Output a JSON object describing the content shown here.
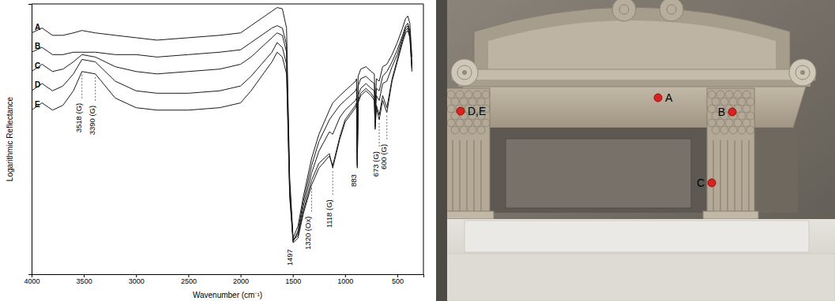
{
  "chart_data": {
    "type": "line",
    "x_label": "Wavenumber (cm⁻¹)",
    "y_label": "Logarithmic Reflectance",
    "xlim": [
      4000,
      250
    ],
    "xticks": [
      4000,
      3500,
      3000,
      2500,
      2000,
      1500,
      1000,
      500
    ],
    "ylim": [
      -12,
      100
    ],
    "yticks": [],
    "tick_labels": "x",
    "grid": false,
    "x": [
      4000,
      3900,
      3800,
      3700,
      3600,
      3518,
      3390,
      3200,
      3000,
      2800,
      2500,
      2200,
      2000,
      1900,
      1800,
      1700,
      1650,
      1600,
      1560,
      1530,
      1497,
      1450,
      1400,
      1320,
      1250,
      1150,
      1118,
      1050,
      1000,
      950,
      900,
      890,
      883,
      875,
      850,
      800,
      750,
      720,
      712,
      700,
      673,
      640,
      600,
      550,
      500,
      450,
      420,
      400,
      380,
      360
    ],
    "series": [
      {
        "name": "A",
        "color": "#1a1a1a",
        "values": [
          88,
          90,
          87,
          87,
          88,
          89,
          88,
          87,
          86,
          85,
          86,
          87,
          88,
          91,
          94,
          97,
          98.5,
          98,
          90,
          28,
          3,
          8,
          20,
          36,
          46,
          56,
          59,
          62,
          64,
          66,
          68,
          69,
          38,
          70,
          73,
          74,
          72,
          71,
          57,
          69,
          68,
          74,
          75,
          79,
          84,
          90,
          94,
          95,
          92,
          78
        ]
      },
      {
        "name": "B",
        "color": "#1a1a1a",
        "values": [
          80,
          82,
          79,
          79,
          80,
          80,
          80,
          79,
          79,
          78,
          79,
          80,
          81,
          84,
          87,
          90,
          91,
          90,
          83,
          25,
          1.5,
          6,
          18,
          33,
          43,
          52,
          54,
          58,
          60,
          62,
          64,
          65,
          36,
          66,
          69,
          70,
          68,
          67,
          54,
          65,
          64,
          70,
          72,
          76,
          81,
          87,
          91,
          92,
          89,
          75
        ]
      },
      {
        "name": "C",
        "color": "#1a1a1a",
        "values": [
          72,
          75,
          72,
          73,
          76,
          79,
          78,
          74,
          72,
          71,
          72,
          73,
          75,
          78,
          82,
          86,
          88,
          87,
          80,
          24,
          2,
          5,
          16,
          30,
          39,
          47,
          46,
          53,
          56,
          58,
          60,
          61,
          34,
          62,
          65,
          67,
          65,
          64,
          51,
          62,
          60,
          67,
          68,
          74,
          79,
          86,
          90,
          91,
          88,
          74
        ]
      },
      {
        "name": "D",
        "color": "#1a1a1a",
        "values": [
          64,
          67,
          64,
          66,
          71,
          77,
          76,
          68,
          64,
          63,
          63,
          64,
          66,
          70,
          75,
          80,
          84,
          82,
          75,
          22,
          2,
          4,
          14,
          27,
          34,
          38,
          32,
          44,
          51,
          54,
          57,
          58,
          32,
          59,
          62,
          64,
          62,
          60,
          48,
          57,
          52,
          60,
          55,
          68,
          76,
          84,
          88,
          89,
          86,
          72
        ]
      },
      {
        "name": "E",
        "color": "#1a1a1a",
        "values": [
          56,
          59,
          56,
          58,
          64,
          72,
          71,
          61,
          57,
          56,
          56,
          57,
          59,
          64,
          70,
          76,
          80,
          78,
          71,
          20,
          1,
          3,
          13,
          25,
          32,
          37,
          33,
          45,
          52,
          55,
          58,
          59,
          33,
          60,
          63,
          65,
          63,
          61,
          49,
          58,
          54,
          62,
          57,
          69,
          77,
          85,
          89,
          90,
          87,
          73
        ]
      }
    ],
    "annotations": [
      {
        "x": 3518,
        "label": "3518 (G)",
        "line_style": "dashed"
      },
      {
        "x": 3390,
        "label": "3390 (G)",
        "line_style": "dashed"
      },
      {
        "x": 1497,
        "label": "1497"
      },
      {
        "x": 1320,
        "label": "1320 (Ox)",
        "line_style": "dashed"
      },
      {
        "x": 1118,
        "label": "1118 (G)",
        "line_style": "dashed"
      },
      {
        "x": 883,
        "label": "883"
      },
      {
        "x": 673,
        "label": "673 (G)",
        "line_style": "dashed"
      },
      {
        "x": 600,
        "label": "600 (G)",
        "line_style": "dashed"
      }
    ]
  },
  "photo": {
    "points": [
      "A",
      "B",
      "C",
      "D,E"
    ]
  }
}
